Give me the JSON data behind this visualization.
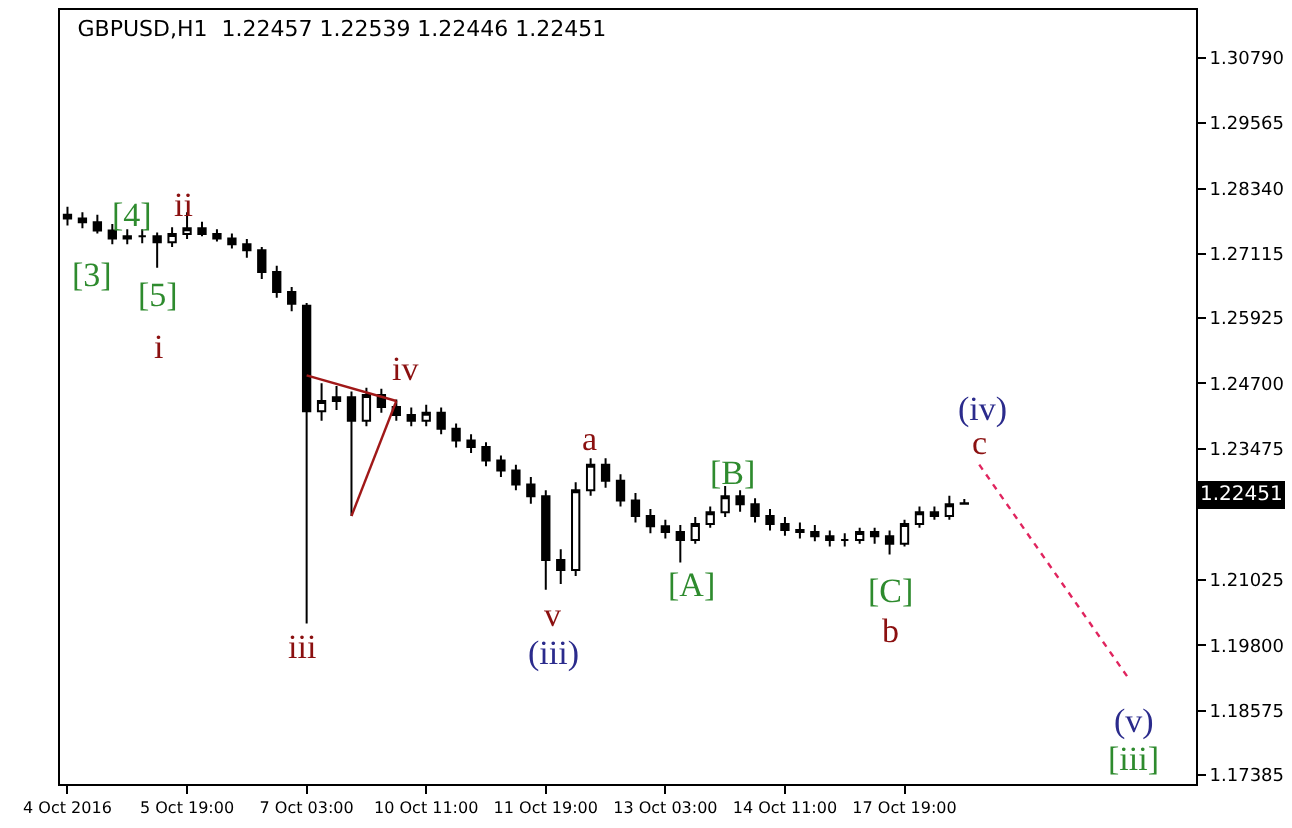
{
  "chart_data": {
    "type": "candlestick",
    "title": "GBPUSD,H1  1.22457 1.22539 1.22446 1.22451",
    "categories": [
      "4 Oct 2016",
      null,
      null,
      null,
      null,
      null,
      null,
      null,
      "5 Oct 19:00",
      null,
      null,
      null,
      null,
      null,
      null,
      null,
      "7 Oct 03:00",
      null,
      null,
      null,
      null,
      null,
      null,
      null,
      "10 Oct 11:00",
      null,
      null,
      null,
      null,
      null,
      null,
      null,
      "11 Oct 19:00",
      null,
      null,
      null,
      null,
      null,
      null,
      null,
      "13 Oct 03:00",
      null,
      null,
      null,
      null,
      null,
      null,
      null,
      "14 Oct 11:00",
      null,
      null,
      null,
      null,
      null,
      null,
      null,
      "17 Oct 19:00",
      null,
      null,
      null,
      null,
      null,
      null,
      null,
      null,
      null,
      null,
      null,
      null,
      null,
      null,
      null,
      null,
      null,
      null,
      null
    ],
    "color": "#000000",
    "ohlc": [
      [
        1.2785,
        1.28,
        1.2765,
        1.2778
      ],
      [
        1.2778,
        1.279,
        1.276,
        1.2771
      ],
      [
        1.2771,
        1.2785,
        1.275,
        1.2756
      ],
      [
        1.2756,
        1.2768,
        1.273,
        1.2741
      ],
      [
        1.2741,
        1.2758,
        1.273,
        1.2745
      ],
      [
        1.2745,
        1.2758,
        1.2732,
        1.2745
      ],
      [
        1.2745,
        1.2752,
        1.2686,
        1.2734
      ],
      [
        1.2734,
        1.2762,
        1.2725,
        1.2749
      ],
      [
        1.2749,
        1.279,
        1.274,
        1.276
      ],
      [
        1.276,
        1.2772,
        1.2745,
        1.2749
      ],
      [
        1.2749,
        1.2758,
        1.2735,
        1.2741
      ],
      [
        1.2741,
        1.275,
        1.2722,
        1.273
      ],
      [
        1.273,
        1.274,
        1.2705,
        1.2719
      ],
      [
        1.2719,
        1.2725,
        1.2665,
        1.2678
      ],
      [
        1.2678,
        1.269,
        1.263,
        1.2641
      ],
      [
        1.2641,
        1.265,
        1.2605,
        1.2619
      ],
      [
        1.2615,
        1.262,
        1.2021,
        1.2418
      ],
      [
        1.2418,
        1.247,
        1.24,
        1.2437
      ],
      [
        1.2437,
        1.2465,
        1.242,
        1.2444
      ],
      [
        1.2444,
        1.2455,
        1.2222,
        1.24
      ],
      [
        1.24,
        1.2462,
        1.239,
        1.2448
      ],
      [
        1.2448,
        1.246,
        1.2415,
        1.2426
      ],
      [
        1.2426,
        1.244,
        1.24,
        1.2411
      ],
      [
        1.2411,
        1.2425,
        1.239,
        1.24
      ],
      [
        1.24,
        1.243,
        1.239,
        1.2415
      ],
      [
        1.2415,
        1.2425,
        1.2375,
        1.2385
      ],
      [
        1.2385,
        1.2395,
        1.235,
        1.2363
      ],
      [
        1.2363,
        1.2375,
        1.234,
        1.2351
      ],
      [
        1.2351,
        1.236,
        1.2315,
        1.2326
      ],
      [
        1.2326,
        1.2335,
        1.2295,
        1.2307
      ],
      [
        1.2307,
        1.2318,
        1.227,
        1.2281
      ],
      [
        1.2281,
        1.2295,
        1.2245,
        1.2259
      ],
      [
        1.2259,
        1.227,
        1.2084,
        1.214
      ],
      [
        1.214,
        1.216,
        1.2095,
        1.2121
      ],
      [
        1.2121,
        1.2285,
        1.211,
        1.227
      ],
      [
        1.227,
        1.233,
        1.226,
        1.2318
      ],
      [
        1.2318,
        1.233,
        1.2275,
        1.2288
      ],
      [
        1.2288,
        1.23,
        1.224,
        1.2251
      ],
      [
        1.2251,
        1.2265,
        1.221,
        1.2222
      ],
      [
        1.2222,
        1.2235,
        1.219,
        1.2203
      ],
      [
        1.2203,
        1.2215,
        1.218,
        1.2192
      ],
      [
        1.2192,
        1.2205,
        1.2135,
        1.2177
      ],
      [
        1.2177,
        1.222,
        1.217,
        1.2207
      ],
      [
        1.2207,
        1.224,
        1.22,
        1.2229
      ],
      [
        1.2229,
        1.2278,
        1.222,
        1.2259
      ],
      [
        1.2259,
        1.227,
        1.223,
        1.2244
      ],
      [
        1.2244,
        1.2255,
        1.221,
        1.2222
      ],
      [
        1.2222,
        1.2235,
        1.2195,
        1.2207
      ],
      [
        1.2207,
        1.222,
        1.2185,
        1.2196
      ],
      [
        1.2196,
        1.221,
        1.218,
        1.2192
      ],
      [
        1.2192,
        1.2205,
        1.2175,
        1.2184
      ],
      [
        1.2184,
        1.2195,
        1.2165,
        1.2177
      ],
      [
        1.2177,
        1.219,
        1.2165,
        1.2177
      ],
      [
        1.2177,
        1.22,
        1.217,
        1.2192
      ],
      [
        1.2192,
        1.22,
        1.217,
        1.2184
      ],
      [
        1.2184,
        1.2195,
        1.215,
        1.217
      ],
      [
        1.217,
        1.2215,
        1.2165,
        1.2207
      ],
      [
        1.2207,
        1.224,
        1.22,
        1.2229
      ],
      [
        1.2229,
        1.224,
        1.2215,
        1.2222
      ],
      [
        1.2222,
        1.226,
        1.2215,
        1.2244
      ],
      [
        1.22457,
        1.22539,
        1.22446,
        1.22451
      ],
      null,
      null,
      null,
      null,
      null,
      null,
      null,
      null,
      null,
      null,
      null,
      null,
      null,
      null,
      null
    ],
    "series": [
      {
        "type": "line",
        "color": "#a01818",
        "line_style": "solid",
        "values": [
          null,
          null,
          null,
          null,
          null,
          null,
          null,
          null,
          null,
          null,
          null,
          null,
          null,
          null,
          null,
          null,
          1.2485,
          null,
          null,
          null,
          null,
          null,
          1.2437,
          null,
          null,
          null,
          null,
          null,
          null,
          null,
          null,
          null,
          null,
          null,
          null,
          null,
          null,
          null,
          null,
          null,
          null,
          null,
          null,
          null,
          null,
          null,
          null,
          null,
          null,
          null,
          null,
          null,
          null,
          null,
          null,
          null,
          null,
          null,
          null,
          null,
          null,
          null,
          null,
          null,
          null,
          null,
          null,
          null,
          null,
          null,
          null,
          null,
          null,
          null,
          null,
          null
        ]
      },
      {
        "type": "line",
        "color": "#a01818",
        "line_style": "solid",
        "values": [
          null,
          null,
          null,
          null,
          null,
          null,
          null,
          null,
          null,
          null,
          null,
          null,
          null,
          null,
          null,
          null,
          null,
          null,
          null,
          1.2222,
          null,
          null,
          1.2437,
          null,
          null,
          null,
          null,
          null,
          null,
          null,
          null,
          null,
          null,
          null,
          null,
          null,
          null,
          null,
          null,
          null,
          null,
          null,
          null,
          null,
          null,
          null,
          null,
          null,
          null,
          null,
          null,
          null,
          null,
          null,
          null,
          null,
          null,
          null,
          null,
          null,
          null,
          null,
          null,
          null,
          null,
          null,
          null,
          null,
          null,
          null,
          null,
          null,
          null,
          null,
          null,
          null
        ]
      },
      {
        "type": "line",
        "color": "#e0245e",
        "line_style": "dotted",
        "values": [
          null,
          null,
          null,
          null,
          null,
          null,
          null,
          null,
          null,
          null,
          null,
          null,
          null,
          null,
          null,
          null,
          null,
          null,
          null,
          null,
          null,
          null,
          null,
          null,
          null,
          null,
          null,
          null,
          null,
          null,
          null,
          null,
          null,
          null,
          null,
          null,
          null,
          null,
          null,
          null,
          null,
          null,
          null,
          null,
          null,
          null,
          null,
          null,
          null,
          null,
          null,
          null,
          null,
          null,
          null,
          null,
          null,
          null,
          null,
          null,
          null,
          1.2318,
          null,
          null,
          null,
          null,
          null,
          null,
          null,
          null,
          null,
          1.1918,
          null,
          null,
          null,
          null
        ]
      }
    ],
    "ylim": [
      1.1721,
      1.3168
    ],
    "yticks": [
      {
        "value": 1.3079,
        "label": "1.30790"
      },
      {
        "value": 1.29565,
        "label": "1.29565"
      },
      {
        "value": 1.2834,
        "label": "1.28340"
      },
      {
        "value": 1.27115,
        "label": "1.27115"
      },
      {
        "value": 1.25925,
        "label": "1.25925"
      },
      {
        "value": 1.247,
        "label": "1.24700"
      },
      {
        "value": 1.23475,
        "label": "1.23475"
      },
      {
        "value": 1.21025,
        "label": "1.21025"
      },
      {
        "value": 1.198,
        "label": "1.19800"
      },
      {
        "value": 1.18575,
        "label": "1.18575"
      },
      {
        "value": 1.17385,
        "label": "1.17385"
      }
    ],
    "annotations": [
      "[3]",
      "[4]",
      "[5]",
      "i",
      "ii",
      "iii",
      "iv",
      "v",
      "(iii)",
      "a",
      "[A]",
      "[B]",
      "[C]",
      "b",
      "(iv)",
      "c",
      "(v)",
      "[iii]",
      "1.22451"
    ]
  }
}
